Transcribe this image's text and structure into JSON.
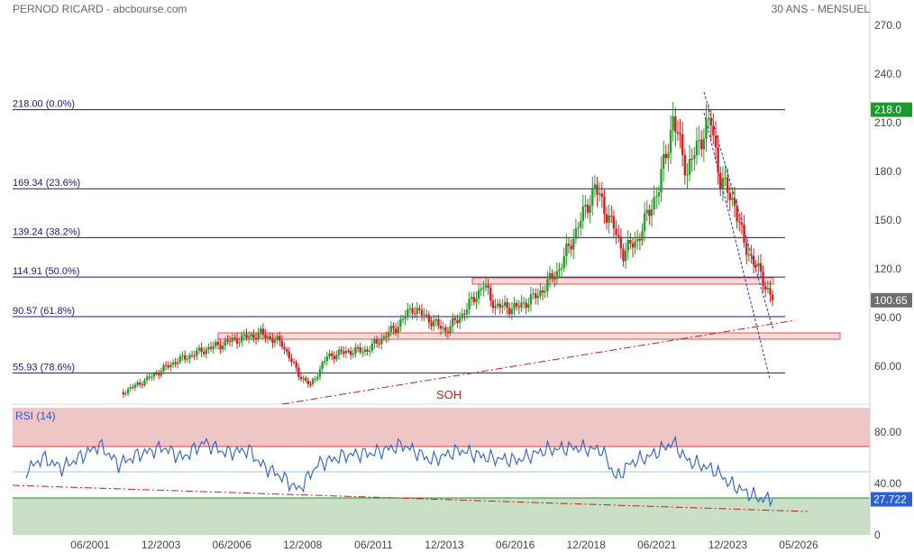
{
  "header": {
    "left": "PERNOD RICARD - abcbourse.com",
    "right": "30 ANS - MENSUEL"
  },
  "chart_data": [
    {
      "type": "candlestick",
      "y_axis_ticks": [
        "270.0",
        "240.0",
        "210.0",
        "180.0",
        "150.0",
        "120.0",
        "90.00",
        "60.00"
      ],
      "y_axis_values": [
        270,
        240,
        210,
        180,
        150,
        120,
        90,
        60
      ],
      "x_axis_ticks": [
        "06/2001",
        "12/2003",
        "06/2006",
        "12/2008",
        "06/2011",
        "12/2013",
        "06/2016",
        "12/2018",
        "06/2021",
        "12/2023",
        "05/2026"
      ],
      "ylim": [
        42,
        280
      ],
      "fibonacci_levels": [
        {
          "value": 218.0,
          "label": "218.00  (0.0%)"
        },
        {
          "value": 169.34,
          "label": "169.34  (23.6%)"
        },
        {
          "value": 139.24,
          "label": "139.24  (38.2%)"
        },
        {
          "value": 114.91,
          "label": "114.91  (50.0%)"
        },
        {
          "value": 90.57,
          "label": "90.57  (61.8%)"
        },
        {
          "value": 55.93,
          "label": "55.93  (78.6%)"
        }
      ],
      "price_badges": [
        {
          "value": 218.0,
          "label": "218.0",
          "color": "#1a9a2a"
        },
        {
          "value": 100.65,
          "label": "100.65",
          "color": "#6e6e6e"
        }
      ],
      "annotation": "SOH",
      "key_points": [
        [
          "2002-08",
          44
        ],
        [
          "2003-06",
          52
        ],
        [
          "2004-06",
          63
        ],
        [
          "2005-06",
          70
        ],
        [
          "2006-06",
          76
        ],
        [
          "2007-06",
          80
        ],
        [
          "2008-03",
          74
        ],
        [
          "2008-10",
          55
        ],
        [
          "2009-03",
          48
        ],
        [
          "2009-10",
          66
        ],
        [
          "2010-06",
          69
        ],
        [
          "2011-03",
          70
        ],
        [
          "2012-03",
          84
        ],
        [
          "2012-10",
          96
        ],
        [
          "2013-06",
          88
        ],
        [
          "2013-12",
          82
        ],
        [
          "2014-06",
          90
        ],
        [
          "2015-04",
          110
        ],
        [
          "2015-09",
          97
        ],
        [
          "2016-06",
          96
        ],
        [
          "2017-03",
          104
        ],
        [
          "2017-12",
          120
        ],
        [
          "2018-06",
          140
        ],
        [
          "2019-03",
          170
        ],
        [
          "2019-11",
          145
        ],
        [
          "2020-03",
          130
        ],
        [
          "2020-09",
          138
        ],
        [
          "2021-06",
          170
        ],
        [
          "2021-12",
          212
        ],
        [
          "2022-06",
          180
        ],
        [
          "2023-01",
          205
        ],
        [
          "2023-04",
          210
        ],
        [
          "2023-08",
          175
        ],
        [
          "2024-02",
          160
        ],
        [
          "2024-06",
          135
        ],
        [
          "2024-11",
          122
        ],
        [
          "2025-03",
          110
        ],
        [
          "2025-06",
          100.65
        ]
      ]
    },
    {
      "type": "line",
      "title": "RSI (14)",
      "y_axis_ticks": [
        "80.00",
        "40.00",
        "0"
      ],
      "y_axis_values": [
        80,
        40,
        0
      ],
      "ylim": [
        0,
        100
      ],
      "overbought": 70,
      "oversold": 30,
      "midline": 50,
      "last_value": 27.722,
      "last_label": "27.722",
      "key_points": [
        [
          "1999-03",
          50
        ],
        [
          "1999-10",
          60
        ],
        [
          "2000-06",
          52
        ],
        [
          "2001-03",
          62
        ],
        [
          "2001-10",
          70
        ],
        [
          "2002-06",
          55
        ],
        [
          "2003-03",
          63
        ],
        [
          "2004-01",
          68
        ],
        [
          "2004-09",
          60
        ],
        [
          "2005-06",
          72
        ],
        [
          "2006-03",
          64
        ],
        [
          "2007-01",
          66
        ],
        [
          "2007-06",
          55
        ],
        [
          "2008-03",
          45
        ],
        [
          "2008-10",
          35
        ],
        [
          "2009-06",
          55
        ],
        [
          "2010-06",
          62
        ],
        [
          "2011-06",
          64
        ],
        [
          "2012-06",
          70
        ],
        [
          "2013-06",
          58
        ],
        [
          "2014-06",
          66
        ],
        [
          "2015-06",
          60
        ],
        [
          "2016-06",
          58
        ],
        [
          "2017-06",
          66
        ],
        [
          "2018-06",
          68
        ],
        [
          "2019-06",
          66
        ],
        [
          "2019-12",
          44
        ],
        [
          "2020-06",
          56
        ],
        [
          "2021-03",
          62
        ],
        [
          "2021-12",
          72
        ],
        [
          "2022-06",
          58
        ],
        [
          "2023-06",
          50
        ],
        [
          "2023-12",
          40
        ],
        [
          "2024-06",
          34
        ],
        [
          "2025-01",
          28
        ],
        [
          "2025-06",
          27.722
        ]
      ]
    }
  ]
}
